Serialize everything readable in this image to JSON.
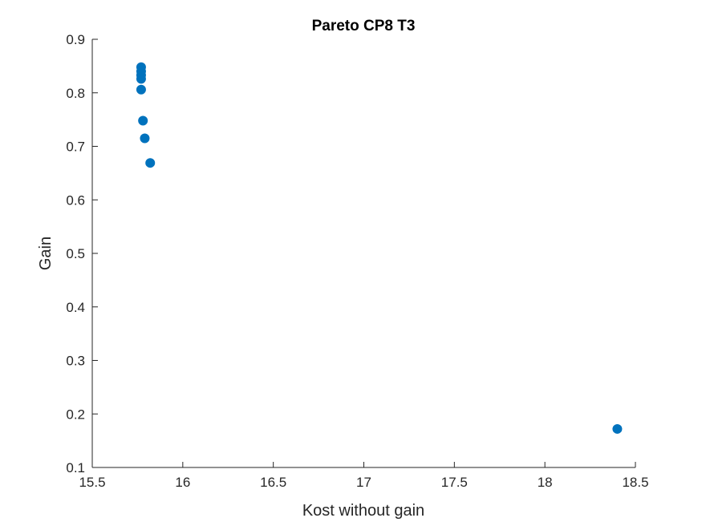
{
  "chart_data": {
    "type": "scatter",
    "title": "Pareto CP8 T3",
    "xlabel": "Kost without gain",
    "ylabel": "Gain",
    "xlim": [
      15.5,
      18.5
    ],
    "ylim": [
      0.1,
      0.9
    ],
    "xticks": [
      "15.5",
      "16",
      "16.5",
      "17",
      "17.5",
      "18",
      "18.5"
    ],
    "yticks": [
      "0.1",
      "0.2",
      "0.3",
      "0.4",
      "0.5",
      "0.6",
      "0.7",
      "0.8",
      "0.9"
    ],
    "grid": false,
    "marker_color": "#0072BD",
    "series": [
      {
        "x": [
          15.77,
          15.77,
          15.77,
          15.77,
          15.77,
          15.78,
          15.79,
          15.82,
          18.4
        ],
        "y": [
          0.848,
          0.84,
          0.833,
          0.826,
          0.806,
          0.748,
          0.715,
          0.669,
          0.172
        ]
      }
    ]
  }
}
